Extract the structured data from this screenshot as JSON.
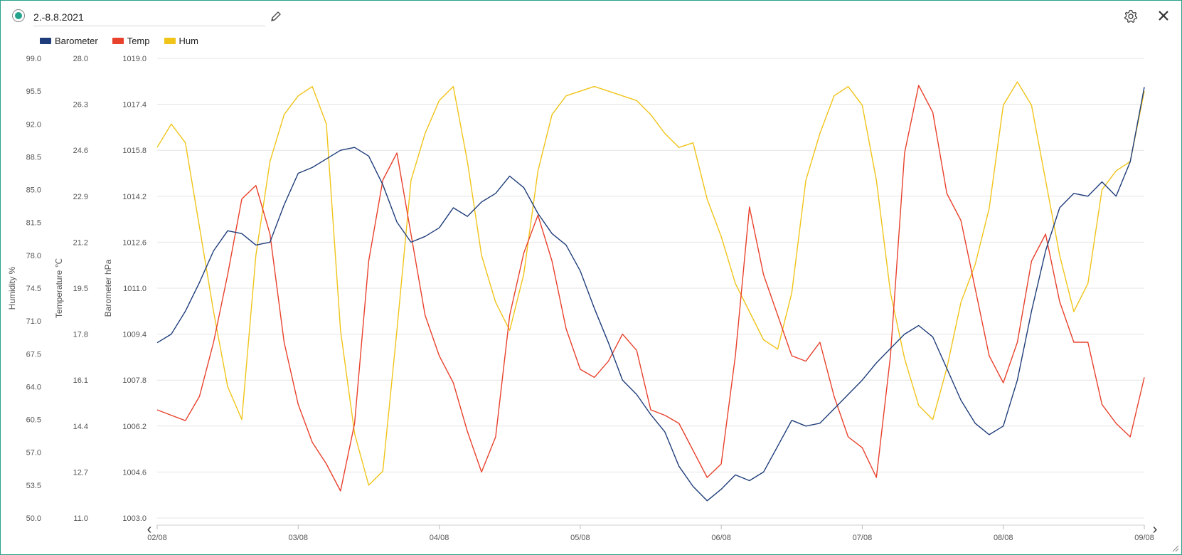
{
  "header": {
    "title_value": "2.-8.8.2021",
    "status_icon": "status-dot-icon",
    "edit_icon": "pencil-icon",
    "settings_icon": "gear-icon",
    "close_icon": "close-icon"
  },
  "navigation": {
    "prev_icon": "chevron-left-icon",
    "next_icon": "chevron-right-icon"
  },
  "chart_data": {
    "type": "line",
    "legend": [
      {
        "name": "Barometer",
        "color": "#1f3d7a"
      },
      {
        "name": "Temp",
        "color": "#e8412c"
      },
      {
        "name": "Hum",
        "color": "#f0c419"
      }
    ],
    "legend_placement": "top-left",
    "grid": true,
    "x": {
      "ticks": [
        "02/08",
        "03/08",
        "04/08",
        "05/08",
        "06/08",
        "07/08",
        "08/08",
        "09/08"
      ],
      "range": [
        "02/08",
        "09/08"
      ]
    },
    "y_axes": [
      {
        "id": "hum",
        "title": "Humidity %",
        "range": [
          50.0,
          99.0
        ],
        "ticks": [
          "50.0",
          "53.5",
          "57.0",
          "60.5",
          "64.0",
          "67.5",
          "71.0",
          "74.5",
          "78.0",
          "81.5",
          "85.0",
          "88.5",
          "92.0",
          "95.5",
          "99.0"
        ]
      },
      {
        "id": "temp",
        "title": "Temperature ℃",
        "range": [
          11.0,
          28.0
        ],
        "ticks": [
          "11.0",
          "12.7",
          "14.4",
          "16.1",
          "17.8",
          "19.5",
          "21.2",
          "22.9",
          "24.6",
          "26.3",
          "28.0"
        ]
      },
      {
        "id": "baro",
        "title": "Barometer hPa",
        "range": [
          1003.0,
          1019.0
        ],
        "ticks": [
          "1003.0",
          "1004.6",
          "1006.2",
          "1007.8",
          "1009.4",
          "1011.0",
          "1012.6",
          "1014.2",
          "1015.8",
          "1017.4",
          "1019.0"
        ]
      }
    ],
    "series": [
      {
        "name": "Barometer",
        "axis": "baro",
        "color": "#1f3d7a",
        "x": [
          0.0,
          0.1,
          0.2,
          0.3,
          0.4,
          0.5,
          0.6,
          0.7,
          0.8,
          0.9,
          1.0,
          1.1,
          1.2,
          1.3,
          1.4,
          1.5,
          1.6,
          1.7,
          1.8,
          1.9,
          2.0,
          2.1,
          2.2,
          2.3,
          2.4,
          2.5,
          2.6,
          2.7,
          2.8,
          2.9,
          3.0,
          3.1,
          3.2,
          3.3,
          3.4,
          3.5,
          3.6,
          3.7,
          3.8,
          3.9,
          4.0,
          4.1,
          4.2,
          4.3,
          4.4,
          4.5,
          4.6,
          4.7,
          4.8,
          4.9,
          5.0,
          5.1,
          5.2,
          5.3,
          5.4,
          5.5,
          5.6,
          5.7,
          5.8,
          5.9,
          6.0,
          6.1,
          6.2,
          6.3,
          6.4,
          6.5,
          6.6,
          6.7,
          6.8,
          6.9,
          7.0
        ],
        "y": [
          1009.1,
          1009.4,
          1010.2,
          1011.2,
          1012.3,
          1013.0,
          1012.9,
          1012.5,
          1012.6,
          1013.9,
          1015.0,
          1015.2,
          1015.5,
          1015.8,
          1015.9,
          1015.6,
          1014.6,
          1013.3,
          1012.6,
          1012.8,
          1013.1,
          1013.8,
          1013.5,
          1014.0,
          1014.3,
          1014.9,
          1014.5,
          1013.6,
          1012.9,
          1012.5,
          1011.6,
          1010.3,
          1009.1,
          1007.8,
          1007.3,
          1006.6,
          1006.0,
          1004.8,
          1004.1,
          1003.6,
          1004.0,
          1004.5,
          1004.3,
          1004.6,
          1005.5,
          1006.4,
          1006.2,
          1006.3,
          1006.8,
          1007.3,
          1007.8,
          1008.4,
          1008.9,
          1009.4,
          1009.7,
          1009.3,
          1008.2,
          1007.1,
          1006.3,
          1005.9,
          1006.2,
          1007.8,
          1010.2,
          1012.3,
          1013.8,
          1014.3,
          1014.2,
          1014.7,
          1014.2,
          1015.4,
          1018.0
        ]
      },
      {
        "name": "Temp",
        "axis": "temp",
        "color": "#e8412c",
        "x": [
          0.0,
          0.1,
          0.2,
          0.3,
          0.4,
          0.5,
          0.6,
          0.7,
          0.8,
          0.9,
          1.0,
          1.1,
          1.2,
          1.3,
          1.4,
          1.5,
          1.6,
          1.7,
          1.8,
          1.9,
          2.0,
          2.1,
          2.2,
          2.3,
          2.4,
          2.5,
          2.6,
          2.7,
          2.8,
          2.9,
          3.0,
          3.1,
          3.2,
          3.3,
          3.4,
          3.5,
          3.6,
          3.7,
          3.8,
          3.9,
          4.0,
          4.1,
          4.2,
          4.3,
          4.4,
          4.5,
          4.6,
          4.7,
          4.8,
          4.9,
          5.0,
          5.1,
          5.2,
          5.3,
          5.4,
          5.5,
          5.6,
          5.7,
          5.8,
          5.9,
          6.0,
          6.1,
          6.2,
          6.3,
          6.4,
          6.5,
          6.6,
          6.7,
          6.8,
          6.9,
          7.0
        ],
        "y": [
          15.0,
          14.8,
          14.6,
          15.5,
          17.5,
          20.0,
          22.8,
          23.3,
          21.5,
          17.5,
          15.2,
          13.8,
          13.0,
          12.0,
          14.5,
          20.5,
          23.5,
          24.5,
          21.5,
          18.5,
          17.0,
          16.0,
          14.2,
          12.7,
          14.0,
          18.5,
          20.8,
          22.2,
          20.5,
          18.0,
          16.5,
          16.2,
          16.8,
          17.8,
          17.2,
          15.0,
          14.8,
          14.5,
          13.5,
          12.5,
          13.0,
          17.0,
          22.5,
          20.0,
          18.5,
          17.0,
          16.8,
          17.5,
          15.5,
          14.0,
          13.6,
          12.5,
          17.0,
          24.5,
          27.0,
          26.0,
          23.0,
          22.0,
          19.5,
          17.0,
          16.0,
          17.5,
          20.5,
          21.5,
          19.0,
          17.5,
          17.5,
          15.2,
          14.5,
          14.0,
          16.2
        ]
      },
      {
        "name": "Hum",
        "axis": "hum",
        "color": "#f0c419",
        "x": [
          0.0,
          0.1,
          0.2,
          0.3,
          0.4,
          0.5,
          0.6,
          0.7,
          0.8,
          0.9,
          1.0,
          1.1,
          1.2,
          1.3,
          1.4,
          1.5,
          1.6,
          1.7,
          1.8,
          1.9,
          2.0,
          2.1,
          2.2,
          2.3,
          2.4,
          2.5,
          2.6,
          2.7,
          2.8,
          2.9,
          3.0,
          3.1,
          3.2,
          3.3,
          3.4,
          3.5,
          3.6,
          3.7,
          3.8,
          3.9,
          4.0,
          4.1,
          4.2,
          4.3,
          4.4,
          4.5,
          4.6,
          4.7,
          4.8,
          4.9,
          5.0,
          5.1,
          5.2,
          5.3,
          5.4,
          5.5,
          5.6,
          5.7,
          5.8,
          5.9,
          6.0,
          6.1,
          6.2,
          6.3,
          6.4,
          6.5,
          6.6,
          6.7,
          6.8,
          6.9,
          7.0
        ],
        "y": [
          89.5,
          92.0,
          90.0,
          81.0,
          72.0,
          64.0,
          60.5,
          78.0,
          88.0,
          93.0,
          95.0,
          96.0,
          92.0,
          70.0,
          59.0,
          53.5,
          55.0,
          70.0,
          86.0,
          91.0,
          94.5,
          96.0,
          88.0,
          78.0,
          73.0,
          70.0,
          76.0,
          87.0,
          93.0,
          95.0,
          95.5,
          96.0,
          95.5,
          95.0,
          94.5,
          93.0,
          91.0,
          89.5,
          90.0,
          84.0,
          80.0,
          75.0,
          72.0,
          69.0,
          68.0,
          74.0,
          86.0,
          91.0,
          95.0,
          96.0,
          94.0,
          86.0,
          74.0,
          67.0,
          62.0,
          60.5,
          66.0,
          73.0,
          77.0,
          83.0,
          94.0,
          96.5,
          94.0,
          86.0,
          78.0,
          72.0,
          75.0,
          85.0,
          87.0,
          88.0,
          95.5
        ]
      }
    ]
  }
}
